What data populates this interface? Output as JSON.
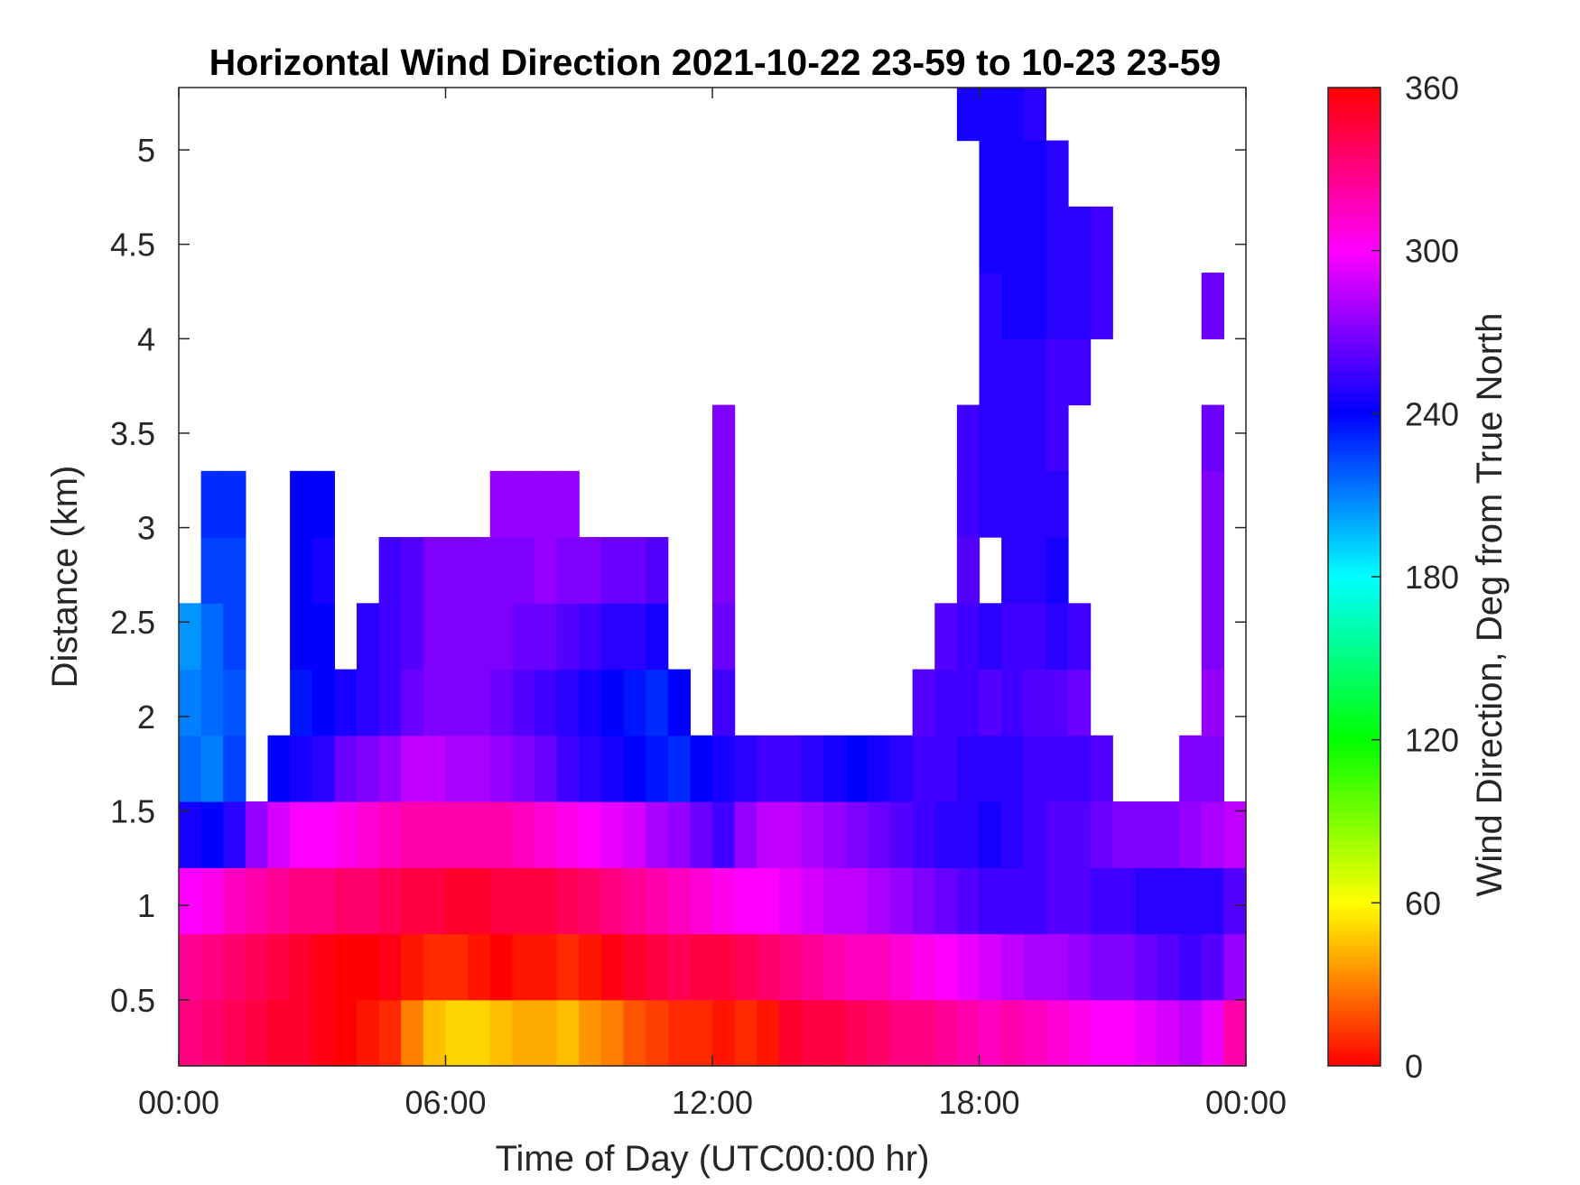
{
  "chart_data": {
    "type": "heatmap",
    "title": "Horizontal Wind Direction 2021-10-22 23-59 to 10-23 23-59",
    "xlabel": "Time of Day (UTC00:00 hr)",
    "ylabel": "Distance (km)",
    "colorbar_label": "Wind Direction, Deg from True North",
    "x_ticks": [
      {
        "value": 0,
        "label": "00:00"
      },
      {
        "value": 6,
        "label": "06:00"
      },
      {
        "value": 12,
        "label": "12:00"
      },
      {
        "value": 18,
        "label": "18:00"
      },
      {
        "value": 24,
        "label": "00:00"
      }
    ],
    "y_ticks": [
      {
        "value": 0.5,
        "label": "0.5"
      },
      {
        "value": 1,
        "label": "1"
      },
      {
        "value": 1.5,
        "label": "1.5"
      },
      {
        "value": 2,
        "label": "2"
      },
      {
        "value": 2.5,
        "label": "2.5"
      },
      {
        "value": 3,
        "label": "3"
      },
      {
        "value": 3.5,
        "label": "3.5"
      },
      {
        "value": 4,
        "label": "4"
      },
      {
        "value": 4.5,
        "label": "4.5"
      },
      {
        "value": 5,
        "label": "5"
      }
    ],
    "colorbar_ticks": [
      {
        "value": 0,
        "label": "0"
      },
      {
        "value": 60,
        "label": "60"
      },
      {
        "value": 120,
        "label": "120"
      },
      {
        "value": 180,
        "label": "180"
      },
      {
        "value": 240,
        "label": "240"
      },
      {
        "value": 300,
        "label": "300"
      },
      {
        "value": 360,
        "label": "360"
      }
    ],
    "xlim": [
      0,
      24
    ],
    "ylim": [
      0.15,
      5.33
    ],
    "clim": [
      0,
      360
    ],
    "colormap": "hsv",
    "grid": false,
    "time_bins_hr": [
      0,
      0.5,
      1,
      1.5,
      2,
      2.5,
      3,
      3.5,
      4,
      4.5,
      5,
      5.5,
      6,
      6.5,
      7,
      7.5,
      8,
      8.5,
      9,
      9.5,
      10,
      10.5,
      11,
      11.5,
      12,
      12.5,
      13,
      13.5,
      14,
      14.5,
      15,
      15.5,
      16,
      16.5,
      17,
      17.5,
      18,
      18.5,
      19,
      19.5,
      20,
      20.5,
      21,
      21.5,
      22,
      22.5,
      23,
      23.5
    ],
    "range_bins_km": [
      0.15,
      0.5,
      0.85,
      1.2,
      1.55,
      1.9,
      2.25,
      2.6,
      2.95,
      3.3,
      3.65,
      4.0,
      4.35,
      4.7,
      5.05
    ],
    "direction_deg": [
      [
        330,
        335,
        340,
        345,
        350,
        350,
        355,
        0,
        5,
        10,
        30,
        45,
        50,
        50,
        45,
        40,
        40,
        45,
        35,
        30,
        20,
        15,
        10,
        10,
        5,
        10,
        5,
        350,
        345,
        345,
        340,
        335,
        330,
        330,
        325,
        320,
        315,
        320,
        315,
        310,
        305,
        300,
        300,
        295,
        290,
        285,
        295,
        320
      ],
      [
        325,
        330,
        335,
        340,
        345,
        350,
        355,
        0,
        0,
        355,
        5,
        10,
        10,
        5,
        0,
        5,
        5,
        10,
        5,
        355,
        350,
        345,
        340,
        345,
        345,
        340,
        335,
        330,
        325,
        320,
        315,
        315,
        310,
        305,
        300,
        295,
        290,
        285,
        280,
        280,
        275,
        270,
        270,
        265,
        260,
        255,
        260,
        275
      ],
      [
        300,
        305,
        315,
        320,
        325,
        330,
        330,
        335,
        335,
        340,
        345,
        345,
        350,
        350,
        345,
        345,
        345,
        340,
        335,
        330,
        325,
        320,
        315,
        310,
        305,
        300,
        300,
        295,
        290,
        285,
        285,
        280,
        275,
        270,
        265,
        260,
        255,
        255,
        255,
        260,
        260,
        255,
        255,
        250,
        250,
        250,
        250,
        260
      ],
      [
        245,
        240,
        250,
        275,
        290,
        300,
        300,
        305,
        310,
        315,
        320,
        320,
        320,
        320,
        320,
        315,
        310,
        305,
        300,
        295,
        290,
        280,
        275,
        265,
        255,
        275,
        285,
        285,
        280,
        275,
        270,
        265,
        260,
        255,
        250,
        250,
        245,
        250,
        255,
        260,
        260,
        265,
        270,
        270,
        270,
        275,
        280,
        285
      ],
      [
        215,
        210,
        225,
        null,
        240,
        245,
        250,
        265,
        270,
        275,
        285,
        285,
        280,
        280,
        275,
        270,
        265,
        255,
        250,
        245,
        240,
        235,
        230,
        240,
        245,
        250,
        255,
        255,
        250,
        245,
        240,
        245,
        250,
        255,
        255,
        250,
        250,
        250,
        255,
        255,
        255,
        260,
        null,
        null,
        null,
        270,
        270,
        null
      ],
      [
        210,
        215,
        220,
        null,
        null,
        235,
        240,
        245,
        250,
        255,
        265,
        270,
        270,
        270,
        265,
        260,
        255,
        250,
        245,
        240,
        235,
        230,
        240,
        null,
        255,
        null,
        null,
        null,
        null,
        null,
        null,
        null,
        null,
        260,
        255,
        255,
        260,
        255,
        260,
        260,
        265,
        null,
        null,
        null,
        null,
        null,
        275,
        null
      ],
      [
        205,
        215,
        225,
        null,
        null,
        240,
        240,
        null,
        250,
        255,
        260,
        270,
        270,
        270,
        270,
        265,
        265,
        260,
        255,
        250,
        250,
        245,
        null,
        null,
        265,
        null,
        null,
        null,
        null,
        null,
        null,
        null,
        null,
        null,
        260,
        255,
        250,
        255,
        255,
        250,
        255,
        null,
        null,
        null,
        null,
        null,
        270,
        null
      ],
      [
        null,
        225,
        225,
        null,
        null,
        240,
        245,
        null,
        null,
        255,
        260,
        270,
        270,
        270,
        270,
        270,
        275,
        270,
        270,
        265,
        265,
        260,
        null,
        null,
        270,
        null,
        null,
        null,
        null,
        null,
        null,
        null,
        null,
        null,
        null,
        260,
        null,
        250,
        250,
        245,
        null,
        null,
        null,
        null,
        null,
        null,
        270,
        null
      ],
      [
        null,
        230,
        230,
        null,
        null,
        240,
        240,
        null,
        null,
        null,
        null,
        null,
        null,
        null,
        275,
        275,
        275,
        275,
        null,
        null,
        null,
        null,
        null,
        null,
        270,
        null,
        null,
        null,
        null,
        null,
        null,
        null,
        null,
        null,
        null,
        255,
        250,
        250,
        250,
        250,
        null,
        null,
        null,
        null,
        null,
        null,
        270,
        null
      ],
      [
        null,
        null,
        null,
        null,
        null,
        null,
        null,
        null,
        null,
        null,
        null,
        null,
        null,
        null,
        null,
        null,
        null,
        null,
        null,
        null,
        null,
        null,
        null,
        null,
        270,
        null,
        null,
        null,
        null,
        null,
        null,
        null,
        null,
        null,
        null,
        255,
        250,
        250,
        250,
        255,
        null,
        null,
        null,
        null,
        null,
        null,
        265,
        null
      ],
      [
        null,
        null,
        null,
        null,
        null,
        null,
        null,
        null,
        null,
        null,
        null,
        null,
        null,
        null,
        null,
        null,
        null,
        null,
        null,
        null,
        null,
        null,
        null,
        null,
        null,
        null,
        null,
        null,
        null,
        null,
        null,
        null,
        null,
        null,
        null,
        null,
        250,
        250,
        250,
        255,
        255,
        null,
        null,
        null,
        null,
        null,
        null,
        null
      ],
      [
        null,
        null,
        null,
        null,
        null,
        null,
        null,
        null,
        null,
        null,
        null,
        null,
        null,
        null,
        null,
        null,
        null,
        null,
        null,
        null,
        null,
        null,
        null,
        null,
        null,
        null,
        null,
        null,
        null,
        null,
        null,
        null,
        null,
        null,
        null,
        null,
        250,
        245,
        245,
        250,
        250,
        255,
        null,
        null,
        null,
        null,
        265,
        null
      ],
      [
        null,
        null,
        null,
        null,
        null,
        null,
        null,
        null,
        null,
        null,
        null,
        null,
        null,
        null,
        null,
        null,
        null,
        null,
        null,
        null,
        null,
        null,
        null,
        null,
        null,
        null,
        null,
        null,
        null,
        null,
        null,
        null,
        null,
        null,
        null,
        null,
        245,
        245,
        245,
        250,
        250,
        255,
        null,
        null,
        null,
        null,
        null,
        null
      ],
      [
        null,
        null,
        null,
        null,
        null,
        null,
        null,
        null,
        null,
        null,
        null,
        null,
        null,
        null,
        null,
        null,
        null,
        null,
        null,
        null,
        null,
        null,
        null,
        null,
        null,
        null,
        null,
        null,
        null,
        null,
        null,
        null,
        null,
        null,
        null,
        null,
        245,
        245,
        245,
        250,
        null,
        null,
        null,
        null,
        null,
        null,
        null,
        null
      ],
      [
        null,
        null,
        null,
        null,
        null,
        null,
        null,
        null,
        null,
        null,
        null,
        null,
        null,
        null,
        null,
        null,
        null,
        null,
        null,
        null,
        null,
        null,
        null,
        null,
        null,
        null,
        null,
        null,
        null,
        null,
        null,
        null,
        null,
        null,
        null,
        245,
        245,
        245,
        250,
        null,
        null,
        null,
        null,
        null,
        null,
        null,
        null,
        null
      ]
    ]
  }
}
